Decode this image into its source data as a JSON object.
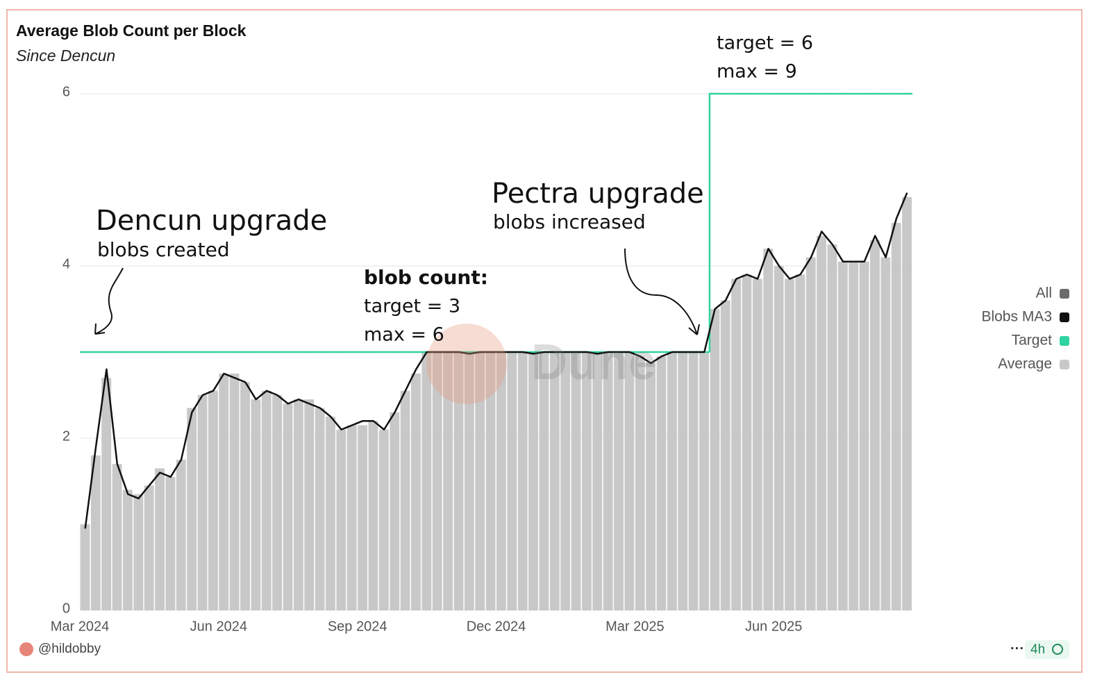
{
  "chart_data": {
    "type": "bar",
    "title": "Average Blob Count per Block",
    "subtitle": "Since Dencun",
    "categories": [
      "Mar 2024",
      null,
      null,
      null,
      null,
      null,
      null,
      null,
      null,
      null,
      null,
      null,
      null,
      "Jun 2024",
      null,
      null,
      null,
      null,
      null,
      null,
      null,
      null,
      null,
      null,
      null,
      null,
      "Sep 2024",
      null,
      null,
      null,
      null,
      null,
      null,
      null,
      null,
      null,
      null,
      null,
      null,
      "Dec 2024",
      null,
      null,
      null,
      null,
      null,
      null,
      null,
      null,
      null,
      null,
      null,
      null,
      "Mar 2025",
      null,
      null,
      null,
      null,
      null,
      null,
      null,
      null,
      null,
      null,
      null,
      null,
      "Jun 2025",
      null,
      null,
      null,
      null,
      null,
      null,
      null,
      null,
      null,
      null,
      null,
      null
    ],
    "series": [
      {
        "name": "All",
        "color": "#6b6b6b"
      },
      {
        "name": "Blobs MA3",
        "color": "#111111",
        "kind": "line",
        "values": [
          0.95,
          1.9,
          2.8,
          1.7,
          1.35,
          1.3,
          1.45,
          1.6,
          1.55,
          1.75,
          2.3,
          2.5,
          2.55,
          2.75,
          2.7,
          2.65,
          2.45,
          2.55,
          2.5,
          2.4,
          2.45,
          2.4,
          2.35,
          2.25,
          2.1,
          2.15,
          2.2,
          2.2,
          2.1,
          2.3,
          2.55,
          2.8,
          3.0,
          3.0,
          3.0,
          3.0,
          2.98,
          3.0,
          3.0,
          3.0,
          3.0,
          3.0,
          2.98,
          3.0,
          3.0,
          3.0,
          3.0,
          3.0,
          2.98,
          3.0,
          3.0,
          3.0,
          2.95,
          2.87,
          2.95,
          3.0,
          3.0,
          3.0,
          3.0,
          3.5,
          3.6,
          3.85,
          3.9,
          3.85,
          4.2,
          4.0,
          3.85,
          3.9,
          4.1,
          4.4,
          4.25,
          4.05,
          4.05,
          4.05,
          4.35,
          4.1,
          4.55,
          4.85
        ]
      },
      {
        "name": "Target",
        "color": "#2fd3a0",
        "kind": "step",
        "values": [
          3,
          3,
          3,
          3,
          3,
          3,
          3,
          3,
          3,
          3,
          3,
          3,
          3,
          3,
          3,
          3,
          3,
          3,
          3,
          3,
          3,
          3,
          3,
          3,
          3,
          3,
          3,
          3,
          3,
          3,
          3,
          3,
          3,
          3,
          3,
          3,
          3,
          3,
          3,
          3,
          3,
          3,
          3,
          3,
          3,
          3,
          3,
          3,
          3,
          3,
          3,
          3,
          3,
          3,
          3,
          3,
          3,
          3,
          3,
          6,
          6,
          6,
          6,
          6,
          6,
          6,
          6,
          6,
          6,
          6,
          6,
          6,
          6,
          6,
          6,
          6,
          6,
          6
        ]
      },
      {
        "name": "Average",
        "color": "#c8c8c8",
        "kind": "bar",
        "values": [
          1.0,
          1.8,
          2.7,
          1.7,
          1.4,
          1.35,
          1.45,
          1.65,
          1.55,
          1.75,
          2.35,
          2.5,
          2.55,
          2.75,
          2.75,
          2.65,
          2.45,
          2.55,
          2.5,
          2.4,
          2.45,
          2.45,
          2.35,
          2.25,
          2.1,
          2.15,
          2.15,
          2.2,
          2.1,
          2.3,
          2.55,
          2.75,
          3.0,
          3.0,
          3.0,
          3.0,
          3.0,
          3.0,
          3.0,
          3.0,
          3.0,
          3.0,
          3.0,
          3.0,
          3.0,
          3.0,
          3.0,
          3.0,
          3.0,
          3.0,
          3.0,
          3.0,
          2.95,
          2.88,
          2.95,
          3.0,
          3.0,
          3.0,
          3.0,
          3.5,
          3.6,
          3.85,
          3.9,
          3.85,
          4.2,
          4.0,
          3.85,
          3.9,
          4.1,
          4.35,
          4.25,
          4.05,
          4.05,
          4.05,
          4.3,
          4.1,
          4.5,
          4.8
        ]
      }
    ],
    "ylim": [
      0,
      6
    ],
    "yticks": [
      0,
      2,
      4,
      6
    ],
    "grid": true,
    "legend": "right",
    "annotations": {
      "dencun_title": "Dencun upgrade",
      "dencun_sub": "blobs created",
      "blob_count": "blob count:",
      "target_3": "target = 3",
      "max_6": "max    = 6",
      "pectra_title": "Pectra upgrade",
      "pectra_sub": "blobs increased",
      "target_6": "target = 6",
      "max_9": "max    = 9",
      "watermark": "Dune"
    }
  },
  "footer": {
    "author": "@hildobby",
    "age": "4h"
  }
}
